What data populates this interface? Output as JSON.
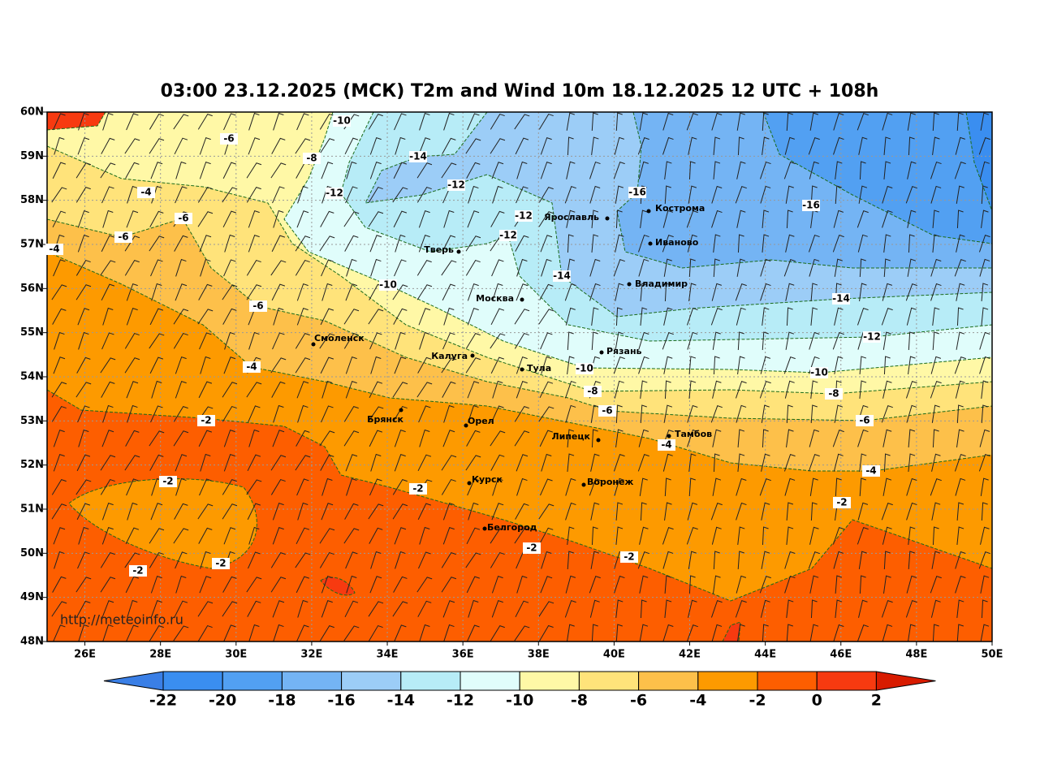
{
  "title": "03:00 23.12.2025 (МСК) T2m and Wind 10m 18.12.2025 12 UTC + 108h",
  "lat_labels": [
    "60N",
    "59N",
    "58N",
    "57N",
    "56N",
    "55N",
    "54N",
    "53N",
    "52N",
    "51N",
    "50N",
    "49N",
    "48N"
  ],
  "lon_labels": [
    "26E",
    "28E",
    "30E",
    "32E",
    "34E",
    "36E",
    "38E",
    "40E",
    "42E",
    "44E",
    "46E",
    "48E",
    "50E"
  ],
  "contour_labels": [
    "-10",
    "-6",
    "-8",
    "-14",
    "-4",
    "-12",
    "-12",
    "-16",
    "-6",
    "-12",
    "-16",
    "-6",
    "-12",
    "-4",
    "-14",
    "-10",
    "-6",
    "-14",
    "-12",
    "-4",
    "-10",
    "-10",
    "-8",
    "-8",
    "-6",
    "-6",
    "-2",
    "-4",
    "-4",
    "-2",
    "-2",
    "-2",
    "-2",
    "-2",
    "-2",
    "-2"
  ],
  "cities": [
    "Кострома",
    "Ярославль",
    "Иваново",
    "Тверь",
    "Владимир",
    "Москва",
    "Смоленск",
    "Рязань",
    "Калуга",
    "Тула",
    "Брянск",
    "Орел",
    "Тамбов",
    "Липецк",
    "Курск",
    "Воронеж",
    "Белгород"
  ],
  "url": "http://meteoinfo.ru",
  "colorbar": {
    "labels": [
      "-22",
      "-20",
      "-18",
      "-16",
      "-14",
      "-12",
      "-10",
      "-8",
      "-6",
      "-4",
      "-2",
      "0",
      "2"
    ],
    "colors": [
      "#3a7fe6",
      "#3a8ef0",
      "#52a0f2",
      "#74b4f4",
      "#9ccdf7",
      "#b7ecf7",
      "#e0fdfb",
      "#fff8a6",
      "#ffe37a",
      "#fdc04a",
      "#fd9a00",
      "#fd5e00",
      "#f73a10",
      "#d81b00"
    ]
  }
}
